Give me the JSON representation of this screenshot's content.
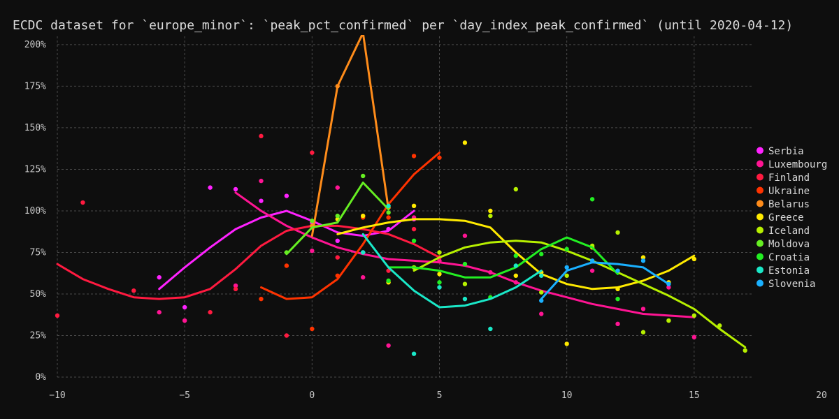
{
  "chart_data": {
    "type": "scatter",
    "title": "ECDC dataset for `europe_minor`: `peak_pct_confirmed` per `day_index_peak_confirmed` (until 2020-04-12)",
    "xlim": [
      -10,
      20
    ],
    "ylim": [
      0,
      205
    ],
    "x_ticks": [
      -10,
      -5,
      0,
      5,
      10,
      15,
      20
    ],
    "x_tick_labels": [
      "−10",
      "−5",
      "0",
      "5",
      "10",
      "15",
      "20"
    ],
    "y_ticks": [
      0,
      25,
      50,
      75,
      100,
      125,
      150,
      175,
      200
    ],
    "y_tick_labels": [
      "0%",
      "25%",
      "50%",
      "75%",
      "100%",
      "125%",
      "150%",
      "175%",
      "200%"
    ],
    "grid": true,
    "legend_position": "right",
    "series": [
      {
        "name": "Serbia",
        "color": "#ff22ff",
        "line": [
          [
            -6,
            53
          ],
          [
            -5,
            66
          ],
          [
            -4,
            78
          ],
          [
            -3,
            89
          ],
          [
            -2,
            96
          ],
          [
            -1,
            100
          ],
          [
            0,
            94
          ],
          [
            1,
            87
          ],
          [
            2,
            85
          ],
          [
            3,
            88
          ],
          [
            4,
            100
          ]
        ],
        "points": [
          [
            -6,
            60
          ],
          [
            -5,
            42
          ],
          [
            -4,
            114
          ],
          [
            -3,
            113
          ],
          [
            -2,
            106
          ],
          [
            -1,
            109
          ],
          [
            0,
            93
          ],
          [
            1,
            82
          ],
          [
            2,
            75
          ],
          [
            3,
            89
          ],
          [
            4,
            95
          ]
        ]
      },
      {
        "name": "Luxembourg",
        "color": "#ff1493",
        "line": [
          [
            -3,
            111
          ],
          [
            -2,
            100
          ],
          [
            -1,
            91
          ],
          [
            0,
            84
          ],
          [
            1,
            78
          ],
          [
            2,
            74
          ],
          [
            3,
            71
          ],
          [
            4,
            70
          ],
          [
            5,
            69
          ],
          [
            6,
            67
          ],
          [
            7,
            63
          ],
          [
            8,
            57
          ],
          [
            9,
            52
          ],
          [
            10,
            48
          ],
          [
            11,
            44
          ],
          [
            12,
            41
          ],
          [
            13,
            38
          ],
          [
            14,
            37
          ],
          [
            15,
            36
          ]
        ],
        "points": [
          [
            -6,
            39
          ],
          [
            -5,
            34
          ],
          [
            -3,
            55
          ],
          [
            -2,
            118
          ],
          [
            0,
            76
          ],
          [
            1,
            114
          ],
          [
            2,
            60
          ],
          [
            3,
            19
          ],
          [
            4,
            96
          ],
          [
            5,
            70
          ],
          [
            6,
            85
          ],
          [
            7,
            63
          ],
          [
            8,
            57
          ],
          [
            9,
            38
          ],
          [
            11,
            64
          ],
          [
            12,
            32
          ],
          [
            13,
            41
          ],
          [
            14,
            54
          ],
          [
            15,
            24
          ]
        ]
      },
      {
        "name": "Finland",
        "color": "#ff1a40",
        "line": [
          [
            -10,
            68
          ],
          [
            -9,
            59
          ],
          [
            -8,
            53
          ],
          [
            -7,
            48
          ],
          [
            -6,
            47
          ],
          [
            -5,
            48
          ],
          [
            -4,
            53
          ],
          [
            -3,
            65
          ],
          [
            -2,
            79
          ],
          [
            -1,
            88
          ],
          [
            0,
            91
          ],
          [
            1,
            91
          ],
          [
            2,
            89
          ],
          [
            3,
            86
          ],
          [
            4,
            80
          ],
          [
            5,
            72
          ]
        ],
        "points": [
          [
            -10,
            37
          ],
          [
            -9,
            105
          ],
          [
            -7,
            52
          ],
          [
            -4,
            39
          ],
          [
            -3,
            53
          ],
          [
            -2,
            145
          ],
          [
            -1,
            25
          ],
          [
            0,
            135
          ],
          [
            1,
            72
          ],
          [
            2,
            97
          ],
          [
            3,
            64
          ],
          [
            4,
            89
          ],
          [
            5,
            72
          ]
        ]
      },
      {
        "name": "Ukraine",
        "color": "#ff3300",
        "line": [
          [
            -2,
            54
          ],
          [
            -1,
            47
          ],
          [
            0,
            48
          ],
          [
            1,
            59
          ],
          [
            2,
            80
          ],
          [
            3,
            104
          ],
          [
            4,
            122
          ],
          [
            5,
            135
          ]
        ],
        "points": [
          [
            -2,
            47
          ],
          [
            -1,
            67
          ],
          [
            0,
            29
          ],
          [
            1,
            61
          ],
          [
            2,
            96
          ],
          [
            3,
            96
          ],
          [
            4,
            133
          ],
          [
            5,
            132
          ]
        ]
      },
      {
        "name": "Belarus",
        "color": "#ff8c1a",
        "line": [
          [
            0,
            85
          ],
          [
            1,
            175
          ],
          [
            2,
            207
          ],
          [
            3,
            101
          ]
        ],
        "points": [
          [
            0,
            91
          ],
          [
            1,
            175
          ],
          [
            3,
            102
          ]
        ]
      },
      {
        "name": "Greece",
        "color": "#ffea00",
        "line": [
          [
            1,
            86
          ],
          [
            2,
            90
          ],
          [
            3,
            93
          ],
          [
            4,
            95
          ],
          [
            5,
            95
          ],
          [
            6,
            94
          ],
          [
            7,
            90
          ],
          [
            8,
            75
          ],
          [
            9,
            62
          ],
          [
            10,
            56
          ],
          [
            11,
            53
          ],
          [
            12,
            54
          ],
          [
            13,
            58
          ],
          [
            14,
            64
          ],
          [
            15,
            73
          ]
        ],
        "points": [
          [
            1,
            95
          ],
          [
            2,
            97
          ],
          [
            3,
            57
          ],
          [
            4,
            103
          ],
          [
            5,
            62
          ],
          [
            6,
            141
          ],
          [
            7,
            100
          ],
          [
            8,
            61
          ],
          [
            9,
            63
          ],
          [
            10,
            20
          ],
          [
            11,
            78
          ],
          [
            12,
            53
          ],
          [
            13,
            72
          ],
          [
            14,
            57
          ],
          [
            15,
            71
          ]
        ]
      },
      {
        "name": "Iceland",
        "color": "#b7f000",
        "line": [
          [
            4,
            64
          ],
          [
            5,
            72
          ],
          [
            6,
            78
          ],
          [
            7,
            81
          ],
          [
            8,
            82
          ],
          [
            9,
            81
          ],
          [
            10,
            76
          ],
          [
            11,
            70
          ],
          [
            12,
            63
          ],
          [
            13,
            56
          ],
          [
            14,
            49
          ],
          [
            15,
            41
          ],
          [
            16,
            29
          ],
          [
            17,
            18
          ]
        ],
        "points": [
          [
            4,
            66
          ],
          [
            5,
            75
          ],
          [
            6,
            56
          ],
          [
            7,
            97
          ],
          [
            8,
            113
          ],
          [
            9,
            51
          ],
          [
            10,
            61
          ],
          [
            11,
            79
          ],
          [
            12,
            87
          ],
          [
            13,
            27
          ],
          [
            14,
            34
          ],
          [
            15,
            37
          ],
          [
            16,
            31
          ],
          [
            17,
            16
          ]
        ]
      },
      {
        "name": "Moldova",
        "color": "#66ee22",
        "line": [
          [
            -1,
            74
          ],
          [
            0,
            90
          ],
          [
            1,
            93
          ],
          [
            2,
            117
          ],
          [
            3,
            101
          ]
        ],
        "points": [
          [
            -1,
            75
          ],
          [
            0,
            94
          ],
          [
            1,
            97
          ],
          [
            2,
            121
          ],
          [
            3,
            99
          ]
        ]
      },
      {
        "name": "Croatia",
        "color": "#22ee22",
        "line": [
          [
            3,
            66
          ],
          [
            4,
            66
          ],
          [
            5,
            64
          ],
          [
            6,
            60
          ],
          [
            7,
            60
          ],
          [
            8,
            66
          ],
          [
            9,
            77
          ],
          [
            10,
            84
          ],
          [
            11,
            78
          ],
          [
            12,
            62
          ]
        ],
        "points": [
          [
            3,
            58
          ],
          [
            4,
            82
          ],
          [
            5,
            57
          ],
          [
            6,
            68
          ],
          [
            7,
            48
          ],
          [
            8,
            73
          ],
          [
            9,
            74
          ],
          [
            10,
            77
          ],
          [
            11,
            107
          ],
          [
            12,
            47
          ]
        ]
      },
      {
        "name": "Estonia",
        "color": "#1ae8c8",
        "line": [
          [
            2,
            86
          ],
          [
            3,
            66
          ],
          [
            4,
            52
          ],
          [
            5,
            42
          ],
          [
            6,
            43
          ],
          [
            7,
            47
          ],
          [
            8,
            54
          ],
          [
            9,
            64
          ]
        ],
        "points": [
          [
            2,
            75
          ],
          [
            3,
            103
          ],
          [
            4,
            14
          ],
          [
            5,
            54
          ],
          [
            6,
            47
          ],
          [
            7,
            29
          ],
          [
            8,
            67
          ],
          [
            9,
            61
          ]
        ]
      },
      {
        "name": "Slovenia",
        "color": "#1ab0ff",
        "line": [
          [
            9,
            47
          ],
          [
            10,
            64
          ],
          [
            11,
            69
          ],
          [
            12,
            68
          ],
          [
            13,
            66
          ],
          [
            14,
            56
          ]
        ],
        "points": [
          [
            9,
            46
          ],
          [
            10,
            66
          ],
          [
            11,
            70
          ],
          [
            12,
            64
          ],
          [
            13,
            70
          ],
          [
            14,
            56
          ]
        ]
      }
    ]
  }
}
